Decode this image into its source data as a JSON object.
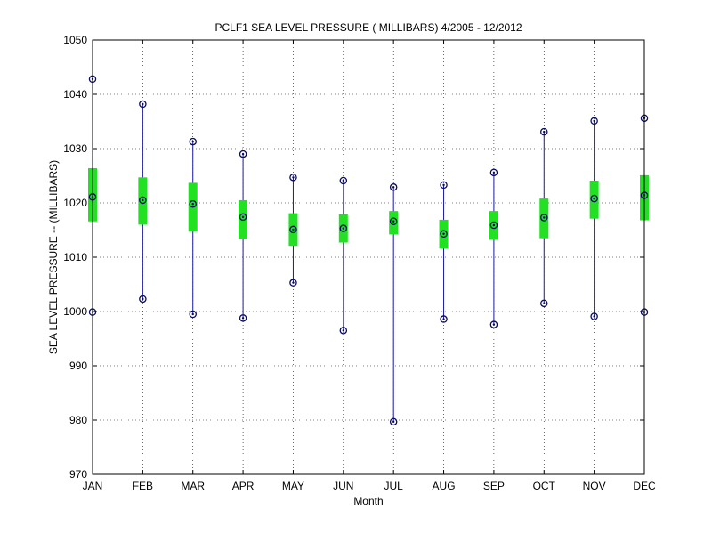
{
  "chart_data": {
    "type": "boxplot",
    "title": "PCLF1  SEA LEVEL PRESSURE ( MILLIBARS) 4/2005 - 12/2012",
    "xlabel": "Month",
    "ylabel": "SEA LEVEL PRESSURE -- (MILLIBARS)",
    "ylim": [
      970,
      1050
    ],
    "yticks": [
      970,
      980,
      990,
      1000,
      1010,
      1020,
      1030,
      1040,
      1050
    ],
    "grid": true,
    "categories": [
      "JAN",
      "FEB",
      "MAR",
      "APR",
      "MAY",
      "JUN",
      "JUL",
      "AUG",
      "SEP",
      "OCT",
      "NOV",
      "DEC"
    ],
    "series": [
      {
        "max": 1042.8,
        "q3": 1026.4,
        "median": 1021.1,
        "q1": 1016.6,
        "min": 999.9
      },
      {
        "max": 1038.2,
        "q3": 1024.7,
        "median": 1020.5,
        "q1": 1016.0,
        "min": 1002.3
      },
      {
        "max": 1031.3,
        "q3": 1023.7,
        "median": 1019.8,
        "q1": 1014.7,
        "min": 999.5
      },
      {
        "max": 1029.0,
        "q3": 1020.5,
        "median": 1017.4,
        "q1": 1013.4,
        "min": 998.8
      },
      {
        "max": 1024.7,
        "q3": 1018.1,
        "median": 1015.1,
        "q1": 1012.1,
        "min": 1005.3
      },
      {
        "max": 1024.1,
        "q3": 1017.9,
        "median": 1015.3,
        "q1": 1012.7,
        "min": 996.5
      },
      {
        "max": 1022.9,
        "q3": 1018.5,
        "median": 1016.6,
        "q1": 1014.2,
        "min": 979.7
      },
      {
        "max": 1023.3,
        "q3": 1016.9,
        "median": 1014.3,
        "q1": 1011.6,
        "min": 998.6
      },
      {
        "max": 1025.6,
        "q3": 1018.5,
        "median": 1015.9,
        "q1": 1013.2,
        "min": 997.6
      },
      {
        "max": 1033.1,
        "q3": 1020.8,
        "median": 1017.3,
        "q1": 1013.5,
        "min": 1001.5
      },
      {
        "max": 1035.1,
        "q3": 1024.1,
        "median": 1020.8,
        "q1": 1017.1,
        "min": 999.1
      },
      {
        "max": 1035.6,
        "q3": 1025.1,
        "median": 1021.4,
        "q1": 1016.8,
        "min": 999.9
      }
    ]
  }
}
